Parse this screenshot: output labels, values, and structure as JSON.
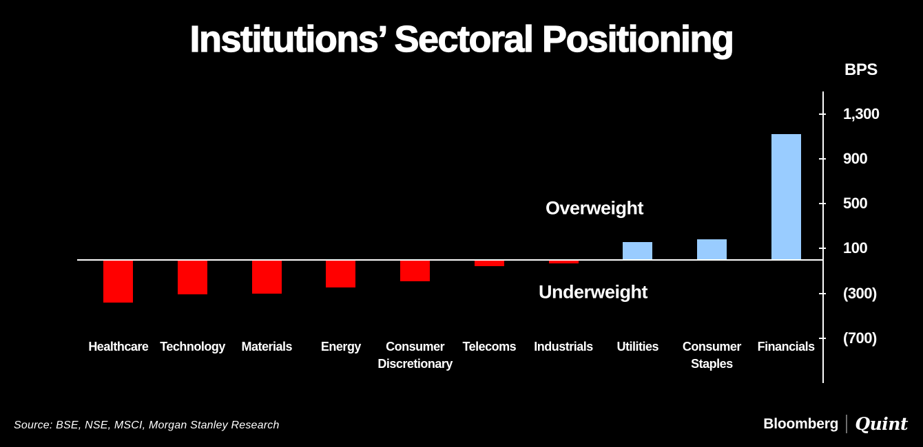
{
  "title": "Institutions’ Sectoral Positioning",
  "chart_data": {
    "type": "bar",
    "title": "Institutions’ Sectoral Positioning",
    "unit_label": "BPS",
    "categories": [
      "Healthcare",
      "Technology",
      "Materials",
      "Energy",
      "Consumer Discretionary",
      "Telecoms",
      "Industrials",
      "Utilities",
      "Consumer Staples",
      "Financials"
    ],
    "values": [
      -380,
      -310,
      -300,
      -250,
      -190,
      -60,
      -30,
      160,
      180,
      1120
    ],
    "xlabel": "",
    "ylabel": "BPS",
    "ylim": [
      -1100,
      1500
    ],
    "y_axis_side": "right",
    "grid": false,
    "legend": "none",
    "yticks": [
      {
        "value": 1300,
        "label": "1,300"
      },
      {
        "value": 900,
        "label": "900"
      },
      {
        "value": 500,
        "label": "500"
      },
      {
        "value": 100,
        "label": "100"
      },
      {
        "value": -300,
        "label": "(300)"
      },
      {
        "value": -700,
        "label": "(700)"
      }
    ],
    "colors": {
      "positive_bar": "#99ccff",
      "negative_bar": "#ff0000",
      "axis": "#ffffff",
      "text": "#ffffff",
      "background": "#000000"
    },
    "annotations": [
      {
        "text": "Overweight",
        "region": "positive"
      },
      {
        "text": "Underweight",
        "region": "negative"
      }
    ]
  },
  "footer": {
    "source": "Source: BSE, NSE, MSCI, Morgan Stanley Research",
    "brand_bloomberg": "Bloomberg",
    "brand_quint": "Quint"
  }
}
